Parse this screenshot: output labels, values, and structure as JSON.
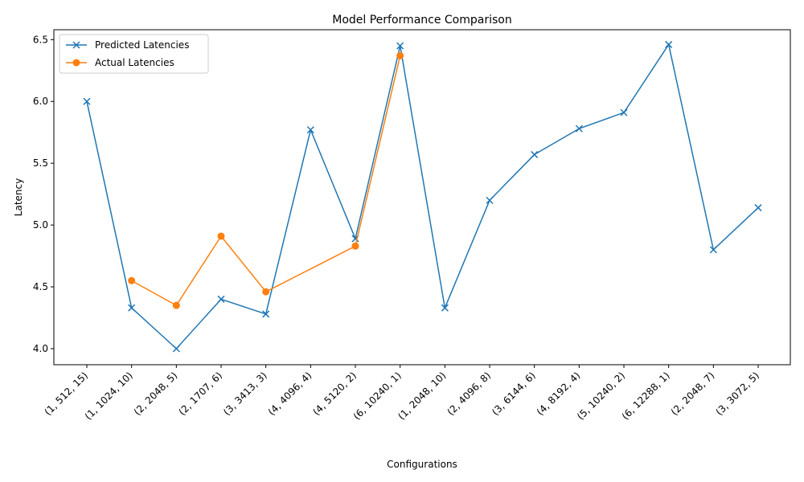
{
  "chart_data": {
    "type": "line",
    "title": "Model Performance Comparison",
    "xlabel": "Configurations",
    "ylabel": "Latency",
    "categories": [
      "(1, 512, 15)",
      "(1, 1024, 10)",
      "(2, 2048, 5)",
      "(2, 1707, 6)",
      "(3, 3413, 3)",
      "(4, 4096, 4)",
      "(4, 5120, 2)",
      "(6, 10240, 1)",
      "(1, 2048, 10)",
      "(2, 4096, 8)",
      "(3, 6144, 6)",
      "(4, 8192, 4)",
      "(5, 10240, 2)",
      "(6, 12288, 1)",
      "(2, 2048, 7)",
      "(3, 3072, 5)"
    ],
    "ylim": [
      3.87,
      6.58
    ],
    "yticks": [
      "4.0",
      "4.5",
      "5.0",
      "5.5",
      "6.0",
      "6.5"
    ],
    "legend_position": "upper-left",
    "grid": false,
    "series": [
      {
        "name": "Predicted Latencies",
        "color": "#1f77b4",
        "marker": "x",
        "values": [
          6.0,
          4.33,
          4.0,
          4.4,
          4.28,
          5.77,
          4.89,
          6.45,
          4.33,
          5.2,
          5.57,
          5.78,
          5.91,
          6.46,
          4.8,
          5.14
        ]
      },
      {
        "name": "Actual Latencies",
        "color": "#ff7f0e",
        "marker": "o",
        "values": [
          null,
          4.55,
          4.35,
          4.91,
          4.46,
          null,
          4.83,
          6.37,
          null,
          null,
          null,
          null,
          null,
          null,
          null,
          null
        ]
      }
    ]
  }
}
